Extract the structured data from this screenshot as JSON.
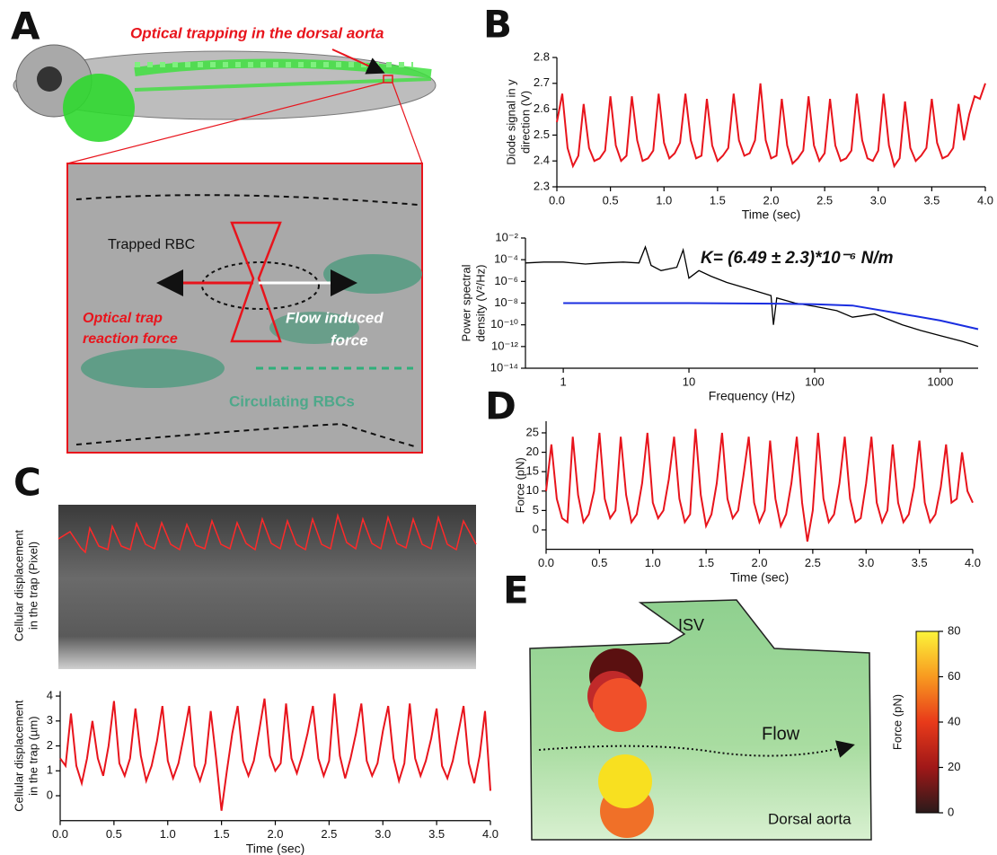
{
  "figure": {
    "panels": [
      "A",
      "B",
      "C",
      "D",
      "E"
    ],
    "annotations_a": {
      "title": "Optical trapping in the dorsal aorta",
      "trapped": "Trapped RBC",
      "reaction": [
        "Optical trap",
        "reaction force"
      ],
      "flow_force": [
        "Flow induced",
        "force"
      ],
      "circulating": "Circulating RBCs"
    },
    "kymograph_ylabel": [
      "Cellular displacement",
      "in the trap (Pixel)"
    ],
    "annotations_e": {
      "isv": "ISV",
      "flow": "Flow",
      "aorta": "Dorsal aorta"
    }
  },
  "chart_data": [
    {
      "type": "line",
      "xlabel": "Time (sec)",
      "ylabel": [
        "Diode signal in y",
        "direction (V)"
      ],
      "xlim": [
        0,
        4
      ],
      "ylim": [
        2.3,
        2.8
      ],
      "xticks": [
        {
          "value": 0,
          "label": "0.0"
        },
        {
          "value": 0.5,
          "label": "0.5"
        },
        {
          "value": 1,
          "label": "1.0"
        },
        {
          "value": 1.5,
          "label": "1.5"
        },
        {
          "value": 2,
          "label": "2.0"
        },
        {
          "value": 2.5,
          "label": "2.5"
        },
        {
          "value": 3,
          "label": "3.0"
        },
        {
          "value": 3.5,
          "label": "3.5"
        },
        {
          "value": 4,
          "label": "4.0"
        }
      ],
      "yticks": [
        2.3,
        2.4,
        2.5,
        2.6,
        2.7,
        2.8
      ],
      "x": [
        0,
        0.05,
        0.1,
        0.15,
        0.2,
        0.25,
        0.3,
        0.35,
        0.4,
        0.45,
        0.5,
        0.55,
        0.6,
        0.65,
        0.7,
        0.75,
        0.8,
        0.85,
        0.9,
        0.95,
        1,
        1.05,
        1.1,
        1.15,
        1.2,
        1.25,
        1.3,
        1.35,
        1.4,
        1.45,
        1.5,
        1.55,
        1.6,
        1.65,
        1.7,
        1.75,
        1.8,
        1.85,
        1.9,
        1.95,
        2,
        2.05,
        2.1,
        2.15,
        2.2,
        2.25,
        2.3,
        2.35,
        2.4,
        2.45,
        2.5,
        2.55,
        2.6,
        2.65,
        2.7,
        2.75,
        2.8,
        2.85,
        2.9,
        2.95,
        3,
        3.05,
        3.1,
        3.15,
        3.2,
        3.25,
        3.3,
        3.35,
        3.4,
        3.45,
        3.5,
        3.55,
        3.6,
        3.65,
        3.7,
        3.75,
        3.8,
        3.85,
        3.9,
        3.95,
        4
      ],
      "series": [
        {
          "color": "#e8141c",
          "values": [
            2.55,
            2.66,
            2.45,
            2.38,
            2.42,
            2.62,
            2.45,
            2.4,
            2.41,
            2.44,
            2.65,
            2.46,
            2.4,
            2.42,
            2.65,
            2.48,
            2.4,
            2.41,
            2.44,
            2.66,
            2.47,
            2.41,
            2.43,
            2.47,
            2.66,
            2.48,
            2.41,
            2.42,
            2.64,
            2.46,
            2.4,
            2.42,
            2.45,
            2.66,
            2.48,
            2.42,
            2.43,
            2.48,
            2.7,
            2.48,
            2.41,
            2.42,
            2.64,
            2.46,
            2.39,
            2.41,
            2.44,
            2.65,
            2.46,
            2.4,
            2.43,
            2.64,
            2.46,
            2.4,
            2.41,
            2.44,
            2.66,
            2.48,
            2.41,
            2.4,
            2.44,
            2.66,
            2.46,
            2.38,
            2.41,
            2.63,
            2.45,
            2.4,
            2.42,
            2.45,
            2.64,
            2.47,
            2.41,
            2.42,
            2.45,
            2.62,
            2.48,
            2.58,
            2.65,
            2.64,
            2.7
          ]
        }
      ]
    },
    {
      "type": "line",
      "log_x": true,
      "log_y": true,
      "xlabel": "Frequency (Hz)",
      "ylabel": [
        "Power spectral",
        "density (V²/Hz)"
      ],
      "annotation": "K= (6.49 ± 2.3)*10⁻⁶ N/m",
      "xlim": [
        0.5,
        2000
      ],
      "ylim": [
        1e-14,
        0.01
      ],
      "xticks": [
        1,
        10,
        100,
        1000
      ],
      "yticks": [
        {
          "value": 1e-14,
          "label": "10⁻¹⁴"
        },
        {
          "value": 1e-12,
          "label": "10⁻¹²"
        },
        {
          "value": 1e-10,
          "label": "10⁻¹⁰"
        },
        {
          "value": 1e-08,
          "label": "10⁻⁸"
        },
        {
          "value": 1e-06,
          "label": "10⁻⁶"
        },
        {
          "value": 0.0001,
          "label": "10⁻⁴"
        },
        {
          "value": 0.01,
          "label": "10⁻²"
        }
      ],
      "series": [
        {
          "color": "#000000",
          "x": [
            0.5,
            0.7,
            1,
            1.5,
            2,
            3,
            4,
            4.5,
            5,
            6,
            8,
            9,
            10,
            12,
            15,
            20,
            30,
            45,
            47,
            50,
            70,
            100,
            150,
            200,
            300,
            500,
            700,
            1000,
            1500,
            2000
          ],
          "values": [
            5e-05,
            6e-05,
            6e-05,
            4e-05,
            5e-05,
            6e-05,
            5e-05,
            0.0015,
            3e-05,
            1e-05,
            2e-05,
            0.0008,
            2e-06,
            1e-05,
            3e-06,
            8e-07,
            2e-07,
            5e-08,
            1e-10,
            3e-08,
            1e-08,
            5e-09,
            2e-09,
            5e-10,
            1e-09,
            1e-10,
            3e-11,
            1e-11,
            3e-12,
            1e-12
          ]
        },
        {
          "color": "#1a2ee0",
          "x": [
            1,
            10,
            50,
            100,
            200,
            500,
            1000,
            2000
          ],
          "values": [
            1e-08,
            1e-08,
            9e-09,
            8e-09,
            6e-09,
            1e-09,
            2.5e-10,
            4e-11
          ]
        }
      ]
    },
    {
      "type": "line",
      "xlabel": "Time (sec)",
      "ylabel": [
        "Cellular displacement",
        "in the trap (µm)"
      ],
      "xlim": [
        0,
        4
      ],
      "ylim": [
        -1,
        4.2
      ],
      "xticks": [
        {
          "value": 0,
          "label": "0.0"
        },
        {
          "value": 0.5,
          "label": "0.5"
        },
        {
          "value": 1,
          "label": "1.0"
        },
        {
          "value": 1.5,
          "label": "1.5"
        },
        {
          "value": 2,
          "label": "2.0"
        },
        {
          "value": 2.5,
          "label": "2.5"
        },
        {
          "value": 3,
          "label": "3.0"
        },
        {
          "value": 3.5,
          "label": "3.5"
        },
        {
          "value": 4,
          "label": "4.0"
        }
      ],
      "yticks": [
        0,
        1,
        2,
        3,
        4
      ],
      "x": [
        0,
        0.05,
        0.1,
        0.15,
        0.2,
        0.25,
        0.3,
        0.35,
        0.4,
        0.45,
        0.5,
        0.55,
        0.6,
        0.65,
        0.7,
        0.75,
        0.8,
        0.85,
        0.9,
        0.95,
        1,
        1.05,
        1.1,
        1.15,
        1.2,
        1.25,
        1.3,
        1.35,
        1.4,
        1.45,
        1.5,
        1.55,
        1.6,
        1.65,
        1.7,
        1.75,
        1.8,
        1.85,
        1.9,
        1.95,
        2,
        2.05,
        2.1,
        2.15,
        2.2,
        2.25,
        2.3,
        2.35,
        2.4,
        2.45,
        2.5,
        2.55,
        2.6,
        2.65,
        2.7,
        2.75,
        2.8,
        2.85,
        2.9,
        2.95,
        3,
        3.05,
        3.1,
        3.15,
        3.2,
        3.25,
        3.3,
        3.35,
        3.4,
        3.45,
        3.5,
        3.55,
        3.6,
        3.65,
        3.7,
        3.75,
        3.8,
        3.85,
        3.9,
        3.95,
        4
      ],
      "series": [
        {
          "color": "#e8141c",
          "values": [
            1.5,
            1.2,
            3.3,
            1.2,
            0.5,
            1.5,
            3.0,
            1.5,
            0.8,
            2.0,
            3.8,
            1.3,
            0.8,
            1.5,
            3.5,
            1.6,
            0.6,
            1.2,
            2.2,
            3.6,
            1.4,
            0.7,
            1.3,
            2.4,
            3.6,
            1.2,
            0.6,
            1.3,
            3.4,
            1.5,
            -0.6,
            1.0,
            2.5,
            3.6,
            1.4,
            0.8,
            1.4,
            2.6,
            3.9,
            1.6,
            1.0,
            1.3,
            3.7,
            1.5,
            0.9,
            1.6,
            2.5,
            3.6,
            1.5,
            0.8,
            1.4,
            4.1,
            1.6,
            0.7,
            1.5,
            2.5,
            3.7,
            1.4,
            0.8,
            1.3,
            2.6,
            3.6,
            1.5,
            0.6,
            1.3,
            3.7,
            1.5,
            0.8,
            1.4,
            2.3,
            3.5,
            1.2,
            0.7,
            1.4,
            2.5,
            3.6,
            1.3,
            0.5,
            1.6,
            3.4,
            0.2
          ]
        }
      ]
    },
    {
      "type": "line",
      "xlabel": "Time (sec)",
      "ylabel": [
        "Force (pN)"
      ],
      "xlim": [
        0,
        4
      ],
      "ylim": [
        -5,
        28
      ],
      "xticks": [
        {
          "value": 0,
          "label": "0.0"
        },
        {
          "value": 0.5,
          "label": "0.5"
        },
        {
          "value": 1,
          "label": "1.0"
        },
        {
          "value": 1.5,
          "label": "1.5"
        },
        {
          "value": 2,
          "label": "2.0"
        },
        {
          "value": 2.5,
          "label": "2.5"
        },
        {
          "value": 3,
          "label": "3.0"
        },
        {
          "value": 3.5,
          "label": "3.5"
        },
        {
          "value": 4,
          "label": "4.0"
        }
      ],
      "yticks": [
        0,
        5,
        10,
        15,
        20,
        25
      ],
      "x": [
        0,
        0.05,
        0.1,
        0.15,
        0.2,
        0.25,
        0.3,
        0.35,
        0.4,
        0.45,
        0.5,
        0.55,
        0.6,
        0.65,
        0.7,
        0.75,
        0.8,
        0.85,
        0.9,
        0.95,
        1,
        1.05,
        1.1,
        1.15,
        1.2,
        1.25,
        1.3,
        1.35,
        1.4,
        1.45,
        1.5,
        1.55,
        1.6,
        1.65,
        1.7,
        1.75,
        1.8,
        1.85,
        1.9,
        1.95,
        2,
        2.05,
        2.1,
        2.15,
        2.2,
        2.25,
        2.3,
        2.35,
        2.4,
        2.45,
        2.5,
        2.55,
        2.6,
        2.65,
        2.7,
        2.75,
        2.8,
        2.85,
        2.9,
        2.95,
        3,
        3.05,
        3.1,
        3.15,
        3.2,
        3.25,
        3.3,
        3.35,
        3.4,
        3.45,
        3.5,
        3.55,
        3.6,
        3.65,
        3.7,
        3.75,
        3.8,
        3.85,
        3.9,
        3.95,
        4
      ],
      "series": [
        {
          "color": "#e8141c",
          "values": [
            10,
            22,
            8,
            3,
            2,
            24,
            9,
            2,
            4,
            10,
            25,
            8,
            3,
            5,
            24,
            9,
            2,
            4,
            12,
            25,
            7,
            3,
            5,
            13,
            24,
            8,
            2,
            4,
            26,
            9,
            1,
            4,
            12,
            25,
            8,
            3,
            5,
            14,
            24,
            7,
            2,
            5,
            23,
            8,
            1,
            4,
            12,
            24,
            7,
            -3,
            5,
            25,
            8,
            2,
            4,
            12,
            24,
            8,
            2,
            3,
            12,
            24,
            7,
            2,
            5,
            22,
            7,
            2,
            4,
            11,
            23,
            7,
            2,
            4,
            11,
            22,
            7,
            8,
            20,
            10,
            7
          ]
        }
      ]
    },
    {
      "type": "colorbar",
      "ylabel": [
        "Force (pN)"
      ],
      "ylim": [
        0,
        80
      ],
      "yticks": [
        0,
        20,
        40,
        60,
        80
      ],
      "colors": [
        "#2a1a1a",
        "#a01818",
        "#e83a1a",
        "#f89a20",
        "#fcf43a"
      ]
    }
  ]
}
